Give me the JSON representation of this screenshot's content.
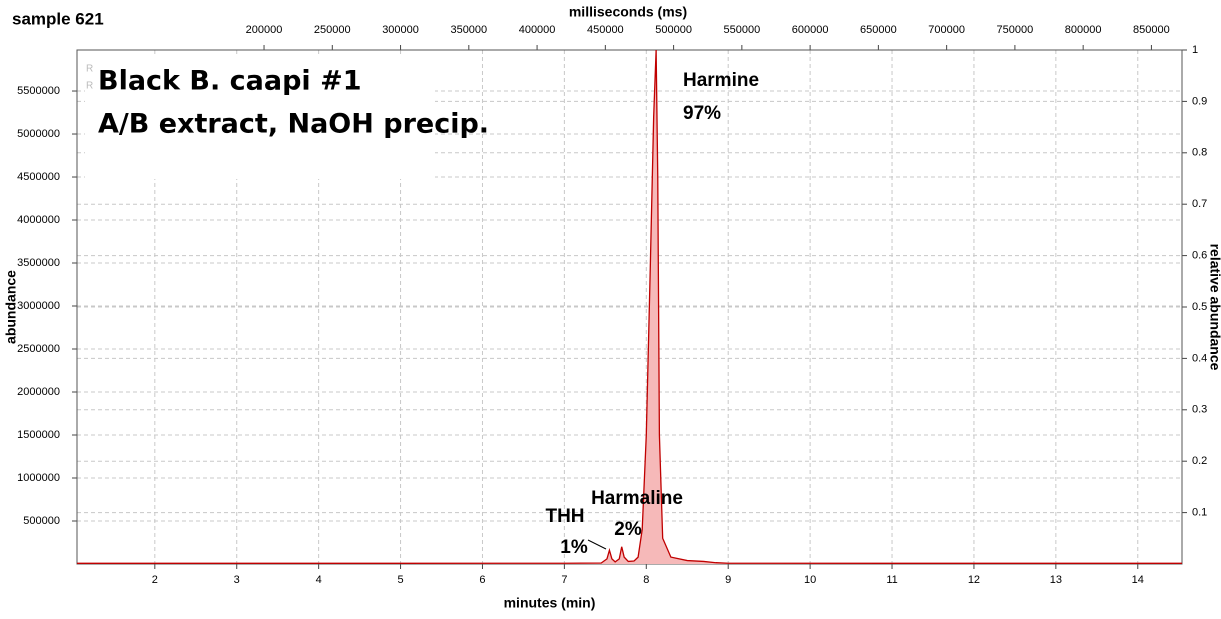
{
  "chart_data": {
    "type": "area",
    "label": "sample 621",
    "title": "Black B. caapi #1",
    "subtitle": "A/B extract, NaOH precip.",
    "markers": [
      "R",
      "R"
    ],
    "xlabel": "minutes (min)",
    "x2label": "milliseconds (ms)",
    "ylabel": "abundance",
    "y2label": "relative abundance",
    "xlim": [
      1.05,
      14.54
    ],
    "xticks": [
      2,
      3,
      4,
      5,
      6,
      7,
      8,
      9,
      10,
      11,
      12,
      13,
      14
    ],
    "x2lim": [
      63000,
      872400
    ],
    "x2ticks": [
      200000,
      250000,
      300000,
      350000,
      400000,
      450000,
      500000,
      550000,
      600000,
      650000,
      700000,
      750000,
      800000,
      850000
    ],
    "ylim": [
      0,
      5977000
    ],
    "yticks": [
      500000,
      1000000,
      1500000,
      2000000,
      2500000,
      3000000,
      3500000,
      4000000,
      4500000,
      5000000,
      5500000
    ],
    "y2lim": [
      0,
      1
    ],
    "y2ticks": [
      0.1,
      0.2,
      0.3,
      0.4,
      0.5,
      0.6,
      0.7,
      0.8,
      0.9,
      1
    ],
    "grid": true,
    "series": [
      {
        "color": "#c00000",
        "fill": "#f6b9b9",
        "x": [
          1.05,
          3,
          5,
          7,
          7.45,
          7.52,
          7.55,
          7.58,
          7.62,
          7.67,
          7.7,
          7.73,
          7.78,
          7.85,
          7.9,
          7.95,
          8.0,
          8.05,
          8.09,
          8.12,
          8.14,
          8.16,
          8.2,
          8.3,
          8.5,
          8.7,
          8.85,
          9,
          11,
          14.54
        ],
        "values": [
          8000,
          8000,
          8000,
          9000,
          12000,
          60000,
          160000,
          60000,
          25000,
          60000,
          200000,
          80000,
          30000,
          35000,
          80000,
          400000,
          1500000,
          3500000,
          5200000,
          5977000,
          4500000,
          1500000,
          300000,
          80000,
          40000,
          30000,
          15000,
          9000,
          8000,
          8000
        ]
      }
    ],
    "annotations": [
      {
        "text": "Harmine",
        "subtext": "97%"
      },
      {
        "text": "Harmaline",
        "subtext": "2%"
      },
      {
        "text": "THH",
        "subtext": "1%"
      }
    ]
  }
}
